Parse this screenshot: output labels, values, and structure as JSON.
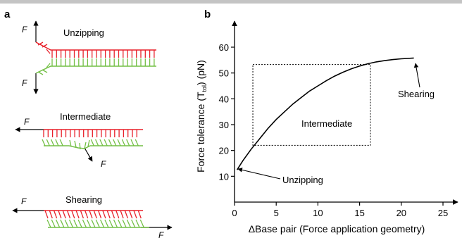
{
  "panel_a": {
    "letter": "a",
    "unzipping": {
      "title": "Unzipping",
      "force_top": "F",
      "force_bottom": "F"
    },
    "intermediate": {
      "title": "Intermediate",
      "force_left": "F",
      "force_bottom": "F"
    },
    "shearing": {
      "title": "Shearing",
      "force_left": "F",
      "force_right": "F"
    }
  },
  "panel_b": {
    "letter": "b",
    "annotations": {
      "unzipping": "Unzipping",
      "intermediate": "Intermediate",
      "shearing": "Shearing"
    }
  },
  "colors": {
    "strand_top": "#e8202a",
    "strand_bottom": "#72bf44"
  },
  "chart_data": {
    "type": "line",
    "xlabel": "ΔBase pair (Force application geometry)",
    "ylabel": "Force tolerance (T",
    "ylabel_sub": "tol",
    "ylabel_end": ") (pN)",
    "xlim": [
      0,
      26
    ],
    "ylim": [
      0,
      67
    ],
    "xticks": [
      0,
      5,
      10,
      15,
      20,
      25
    ],
    "yticks": [
      10,
      20,
      30,
      40,
      50,
      60
    ],
    "series": [
      {
        "values": [
          {
            "x": 0.3,
            "y": 12.5
          },
          {
            "x": 1,
            "y": 16
          },
          {
            "x": 2,
            "y": 20.5
          },
          {
            "x": 3,
            "y": 24.5
          },
          {
            "x": 4,
            "y": 28.5
          },
          {
            "x": 5,
            "y": 32
          },
          {
            "x": 6,
            "y": 35
          },
          {
            "x": 7,
            "y": 38
          },
          {
            "x": 8,
            "y": 40.5
          },
          {
            "x": 9,
            "y": 43
          },
          {
            "x": 10,
            "y": 45
          },
          {
            "x": 11,
            "y": 47
          },
          {
            "x": 12,
            "y": 48.8
          },
          {
            "x": 13,
            "y": 50.3
          },
          {
            "x": 14,
            "y": 51.6
          },
          {
            "x": 15,
            "y": 52.7
          },
          {
            "x": 16,
            "y": 53.6
          },
          {
            "x": 17,
            "y": 54.3
          },
          {
            "x": 18,
            "y": 54.8
          },
          {
            "x": 19,
            "y": 55.2
          },
          {
            "x": 20,
            "y": 55.5
          },
          {
            "x": 21.5,
            "y": 55.8
          }
        ]
      }
    ],
    "region": {
      "label": "Intermediate",
      "x": [
        2.2,
        16.3
      ],
      "y": [
        22,
        53.3
      ]
    },
    "grid": false
  }
}
